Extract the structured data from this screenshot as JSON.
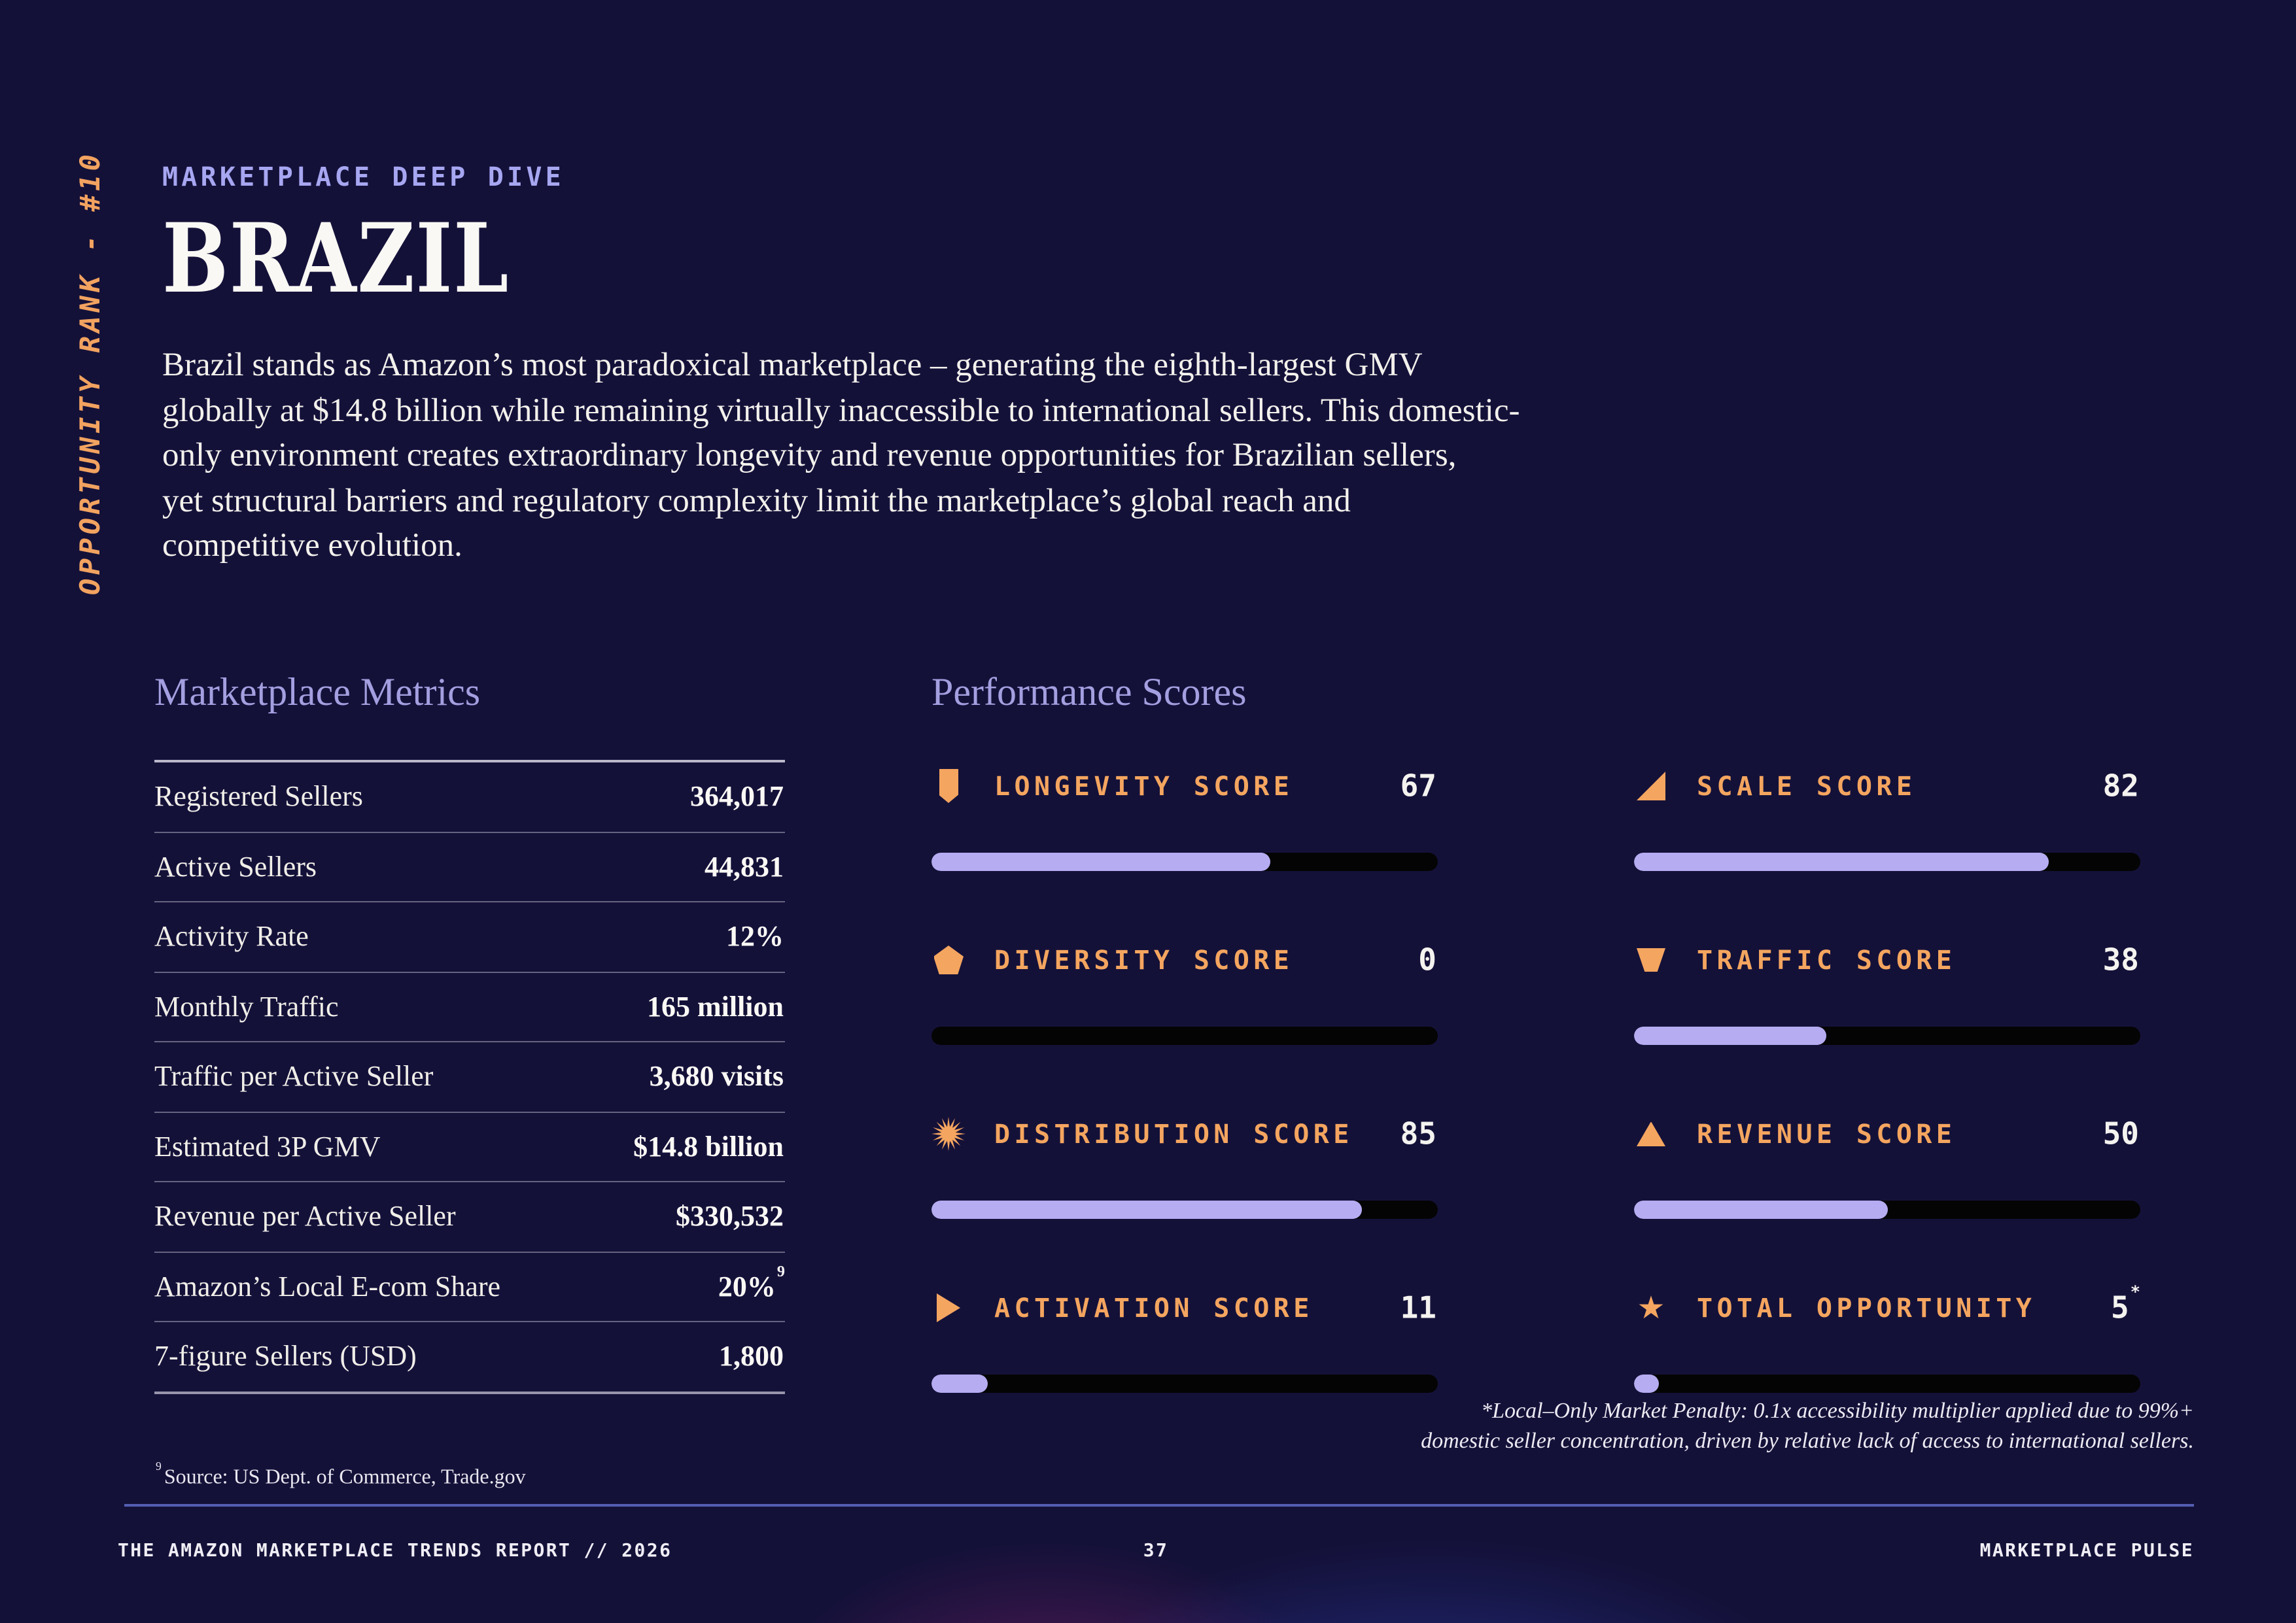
{
  "page": {
    "rank_label": "OPPORTUNITY RANK - #10",
    "eyebrow": "MARKETPLACE DEEP DIVE",
    "title": "BRAZIL",
    "intro": "Brazil stands as Amazon’s most paradoxical marketplace – generating the eighth-largest GMV\nglobally at $14.8 billion while remaining virtually inaccessible to international sellers. This domestic-\nonly environment creates extraordinary longevity and revenue opportunities for Brazilian sellers,\nyet structural barriers and regulatory complexity limit the marketplace’s global reach and\ncompetitive evolution."
  },
  "metrics": {
    "heading": "Marketplace Metrics",
    "rows": [
      {
        "label": "Registered Sellers",
        "value": "364,017"
      },
      {
        "label": "Active Sellers",
        "value": "44,831"
      },
      {
        "label": "Activity Rate",
        "value": "12%"
      },
      {
        "label": "Monthly Traffic",
        "value": "165 million"
      },
      {
        "label": "Traffic per Active Seller",
        "value": "3,680 visits"
      },
      {
        "label": "Estimated 3P GMV",
        "value": "$14.8 billion"
      },
      {
        "label": "Revenue per Active Seller",
        "value": "$330,532"
      },
      {
        "label": "Amazon’s Local E-com Share",
        "value": "20%",
        "value_sup": "9"
      },
      {
        "label": "7-figure Sellers (USD)",
        "value": "1,800"
      }
    ],
    "source_sup": "9",
    "source_text": "Source: US Dept. of Commerce, Trade.gov"
  },
  "scores": {
    "heading": "Performance Scores",
    "items": [
      {
        "icon": "bookmark-icon",
        "label": "LONGEVITY SCORE",
        "value": 67
      },
      {
        "icon": "wedge-triangle-icon",
        "label": "SCALE SCORE",
        "value": 82
      },
      {
        "icon": "pentagon-icon",
        "label": "DIVERSITY SCORE",
        "value": 0
      },
      {
        "icon": "trapezoid-icon",
        "label": "TRAFFIC SCORE",
        "value": 38
      },
      {
        "icon": "starburst-icon",
        "label": "DISTRIBUTION SCORE",
        "value": 85
      },
      {
        "icon": "triangle-up-icon",
        "label": "REVENUE SCORE",
        "value": 50
      },
      {
        "icon": "play-icon",
        "label": "ACTIVATION SCORE",
        "value": 11
      },
      {
        "icon": "star-icon",
        "label": "TOTAL OPPORTUNITY",
        "value": 5,
        "suffix": "*"
      }
    ],
    "footnote": "*Local–Only Market Penalty: 0.1x accessibility multiplier applied due to 99%+\ndomestic seller concentration, driven by relative lack of access to international sellers.",
    "bar_fill_color": "#b5acf2",
    "bar_track_color": "#040404",
    "accent_orange": "#f4a55f"
  },
  "footer": {
    "left": "THE AMAZON MARKETPLACE TRENDS REPORT // 2026",
    "page_number": "37",
    "right": "MARKETPLACE PULSE"
  }
}
